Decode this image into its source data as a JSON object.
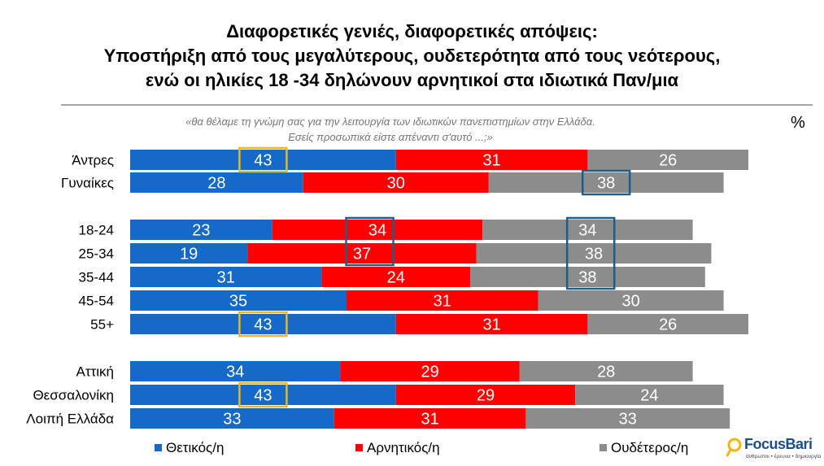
{
  "title_lines": [
    "Διαφορετικές γενιές, διαφορετικές απόψεις:",
    "Υποστήριξη από τους μεγαλύτερους, ουδετερότητα από τους νεότερους,",
    "ενώ οι ηλικίες 18 -34 δηλώνουν αρνητικοί στα ιδιωτικά Παν/μια"
  ],
  "question_lines": [
    "«θα θέλαμε τη γνώμη σας για την λειτουργία των ιδιωτικών πανεπιστημίων στην Ελλάδα.",
    "Εσείς προσωπικά είστε απέναντι σ'αυτό ...;»"
  ],
  "unit": "%",
  "logo": {
    "name": "FocusBari",
    "tagline": "άνθρωποι • έρευνα • δημιουργία"
  },
  "colors": {
    "positive": "#1569c7",
    "negative": "#ff0000",
    "neutral": "#8c8c8c",
    "highlight_gold": "#e8b923",
    "highlight_blue": "#1c5f8a"
  },
  "chart_data": {
    "type": "bar",
    "orientation": "horizontal",
    "stacked": true,
    "categories": [
      "Άντρες",
      "Γυναίκες",
      "18-24",
      "25-34",
      "35-44",
      "45-54",
      "55+",
      "Αττική",
      "Θεσσαλονίκη",
      "Λοιπή Ελλάδα"
    ],
    "groups": [
      [
        0,
        1
      ],
      [
        2,
        3,
        4,
        5,
        6
      ],
      [
        7,
        8,
        9
      ]
    ],
    "series": [
      {
        "name": "Θετικός/η",
        "color": "#1569c7",
        "values": [
          43,
          28,
          23,
          19,
          31,
          35,
          43,
          34,
          43,
          33
        ]
      },
      {
        "name": "Αρνητικός/η",
        "color": "#ff0000",
        "values": [
          31,
          30,
          34,
          37,
          24,
          31,
          31,
          29,
          29,
          31
        ]
      },
      {
        "name": "Ουδέτερος/η",
        "color": "#8c8c8c",
        "values": [
          26,
          38,
          34,
          38,
          38,
          30,
          26,
          28,
          24,
          33
        ]
      }
    ],
    "highlights": [
      {
        "series": 0,
        "rows": [
          0
        ],
        "color": "gold"
      },
      {
        "series": 0,
        "rows": [
          6
        ],
        "color": "gold"
      },
      {
        "series": 0,
        "rows": [
          8
        ],
        "color": "gold"
      },
      {
        "series": 2,
        "rows": [
          1
        ],
        "color": "blue"
      },
      {
        "series": 1,
        "rows": [
          2,
          3
        ],
        "color": "blue"
      },
      {
        "series": 2,
        "rows": [
          2,
          3,
          4
        ],
        "color": "blue"
      }
    ],
    "legend_position": "bottom",
    "xlim": [
      0,
      100
    ]
  }
}
